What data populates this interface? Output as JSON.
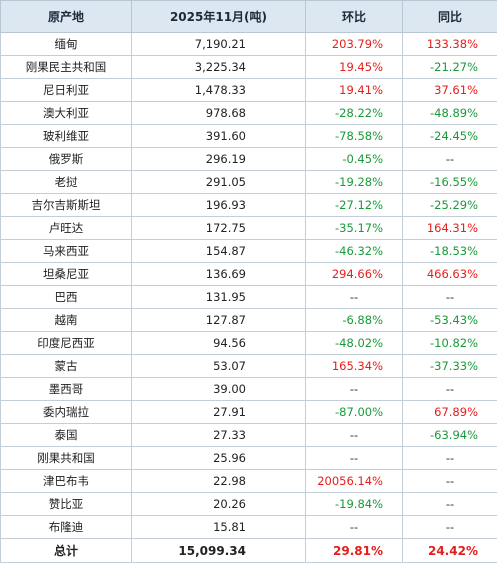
{
  "table": {
    "headers": {
      "origin": "原产地",
      "volume": "2025年11月(吨)",
      "mom": "环比",
      "yoy": "同比"
    },
    "colors": {
      "increase": "#e3201b",
      "decrease": "#199a39",
      "header_bg": "#dde7f1",
      "border": "#b9c6d4"
    },
    "rows": [
      {
        "origin": "缅甸",
        "volume": "7,190.21",
        "mom": "203.79%",
        "yoy": "133.38%"
      },
      {
        "origin": "刚果民主共和国",
        "volume": "3,225.34",
        "mom": "19.45%",
        "yoy": "-21.27%"
      },
      {
        "origin": "尼日利亚",
        "volume": "1,478.33",
        "mom": "19.41%",
        "yoy": "37.61%"
      },
      {
        "origin": "澳大利亚",
        "volume": "978.68",
        "mom": "-28.22%",
        "yoy": "-48.89%"
      },
      {
        "origin": "玻利维亚",
        "volume": "391.60",
        "mom": "-78.58%",
        "yoy": "-24.45%"
      },
      {
        "origin": "俄罗斯",
        "volume": "296.19",
        "mom": "-0.45%",
        "yoy": "--"
      },
      {
        "origin": "老挝",
        "volume": "291.05",
        "mom": "-19.28%",
        "yoy": "-16.55%"
      },
      {
        "origin": "吉尔吉斯斯坦",
        "volume": "196.93",
        "mom": "-27.12%",
        "yoy": "-25.29%"
      },
      {
        "origin": "卢旺达",
        "volume": "172.75",
        "mom": "-35.17%",
        "yoy": "164.31%"
      },
      {
        "origin": "马来西亚",
        "volume": "154.87",
        "mom": "-46.32%",
        "yoy": "-18.53%"
      },
      {
        "origin": "坦桑尼亚",
        "volume": "136.69",
        "mom": "294.66%",
        "yoy": "466.63%"
      },
      {
        "origin": "巴西",
        "volume": "131.95",
        "mom": "--",
        "yoy": "--"
      },
      {
        "origin": "越南",
        "volume": "127.87",
        "mom": "-6.88%",
        "yoy": "-53.43%"
      },
      {
        "origin": "印度尼西亚",
        "volume": "94.56",
        "mom": "-48.02%",
        "yoy": "-10.82%"
      },
      {
        "origin": "蒙古",
        "volume": "53.07",
        "mom": "165.34%",
        "yoy": "-37.33%"
      },
      {
        "origin": "墨西哥",
        "volume": "39.00",
        "mom": "--",
        "yoy": "--"
      },
      {
        "origin": "委内瑞拉",
        "volume": "27.91",
        "mom": "-87.00%",
        "yoy": "67.89%"
      },
      {
        "origin": "泰国",
        "volume": "27.33",
        "mom": "--",
        "yoy": "-63.94%"
      },
      {
        "origin": "刚果共和国",
        "volume": "25.96",
        "mom": "--",
        "yoy": "--"
      },
      {
        "origin": "津巴布韦",
        "volume": "22.98",
        "mom": "20056.14%",
        "yoy": "--"
      },
      {
        "origin": "赞比亚",
        "volume": "20.26",
        "mom": "-19.84%",
        "yoy": "--"
      },
      {
        "origin": "布隆迪",
        "volume": "15.81",
        "mom": "--",
        "yoy": "--"
      }
    ],
    "total": {
      "origin": "总计",
      "volume": "15,099.34",
      "mom": "29.81%",
      "yoy": "24.42%"
    }
  }
}
